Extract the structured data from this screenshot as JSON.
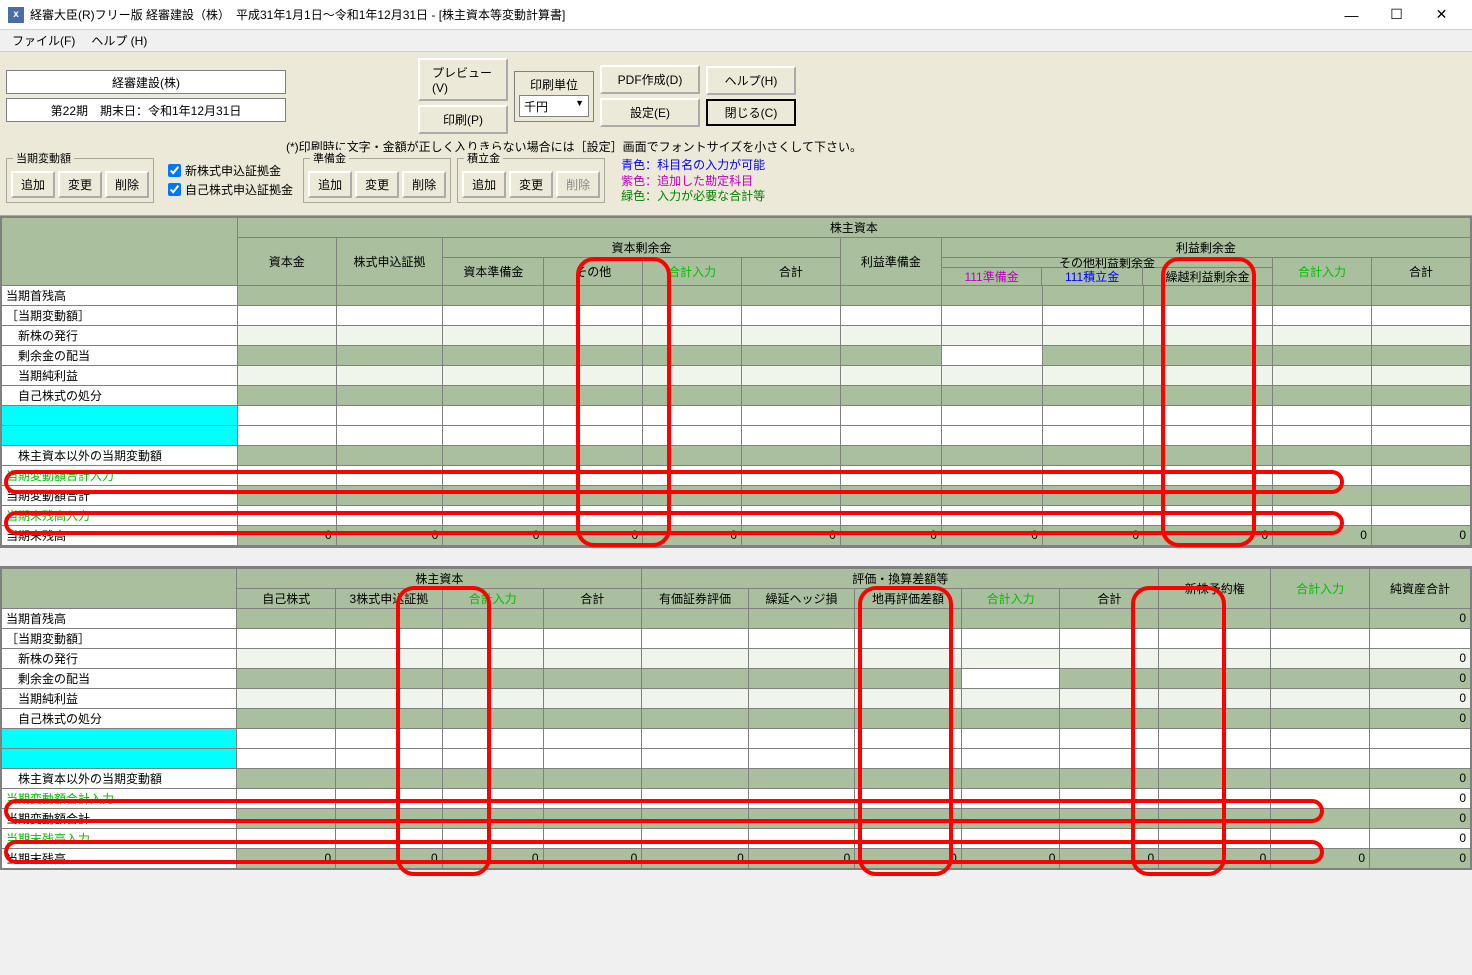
{
  "window": {
    "title": "経審大臣(R)フリー版  経審建設（株）　平成31年1月1日～令和1年12月31日 - [株主資本等変動計算書]",
    "icon_bg": "#4a6da7"
  },
  "menu": {
    "file": "ファイル(F)",
    "help": "ヘルプ (H)"
  },
  "toolbar": {
    "company": "経審建設(株)",
    "period": "第22期　期末日：令和1年12月31日",
    "preview": "プレビュー(V)",
    "print": "印刷(P)",
    "print_unit_label": "印刷単位",
    "print_unit_value": "千円",
    "pdf": "PDF作成(D)",
    "settings": "設定(E)",
    "help": "ヘルプ(H)",
    "close": "閉じる(C)"
  },
  "hint": "(*)印刷時に文字・金額が正しく入りきらない場合には［設定］画面でフォントサイズを小さくして下さい。",
  "groups": {
    "g1_label": "当期変動額",
    "g2_label": "準備金",
    "g3_label": "積立金",
    "add": "追加",
    "edit": "変更",
    "delete": "削除",
    "chk1": "新株式申込証拠金",
    "chk2": "自己株式申込証拠金"
  },
  "legend": {
    "l1": "青色：科目名の入力が可能",
    "l2": "紫色：追加した勘定科目",
    "l3": "緑色：入力が必要な合計等"
  },
  "t1": {
    "super": "株主資本",
    "g_shihon": "資本剰余金",
    "g_rieki": "利益剰余金",
    "g_sonota_rieki": "その他利益剰余金",
    "h_shihonkin": "資本金",
    "h_kabushiki": "株式申込証拠",
    "h_shihon_junbi": "資本準備金",
    "h_sonota": "その他",
    "h_goukei_in": "合計入力",
    "h_goukei": "合計",
    "h_rieki_junbi": "利益準備金",
    "h_111junbi": "111準備金",
    "h_111tsumi": "111積立金",
    "h_kurikoshi": "繰越利益剰余金"
  },
  "rows": {
    "r1": "当期首残高",
    "r2": "［当期変動額］",
    "r3": "　新株の発行",
    "r4": "　剰余金の配当",
    "r5": "　当期純利益",
    "r6": "　自己株式の処分",
    "r7": "",
    "r8": "",
    "r9": "　株主資本以外の当期変動額",
    "r10": "当期変動額合計入力",
    "r11": "当期変動額合計",
    "r12": "当期末残高入力",
    "r13": "当期末残高"
  },
  "t2": {
    "g_kabunushi": "株主資本",
    "g_hyoka": "評価・換算差額等",
    "h_jiko": "自己株式",
    "h_jikomoushi": "3株式申込証拠",
    "h_goukei_in": "合計入力",
    "h_goukei": "合計",
    "h_yuuka": "有価証券評価",
    "h_kurinobe": "繰延ヘッジ損",
    "h_tochi": "地再評価差額",
    "h_shinkabu": "新株予約権",
    "h_junshisan": "純資産合計"
  },
  "zero": "0",
  "highlights": {
    "color": "#ff0000"
  }
}
